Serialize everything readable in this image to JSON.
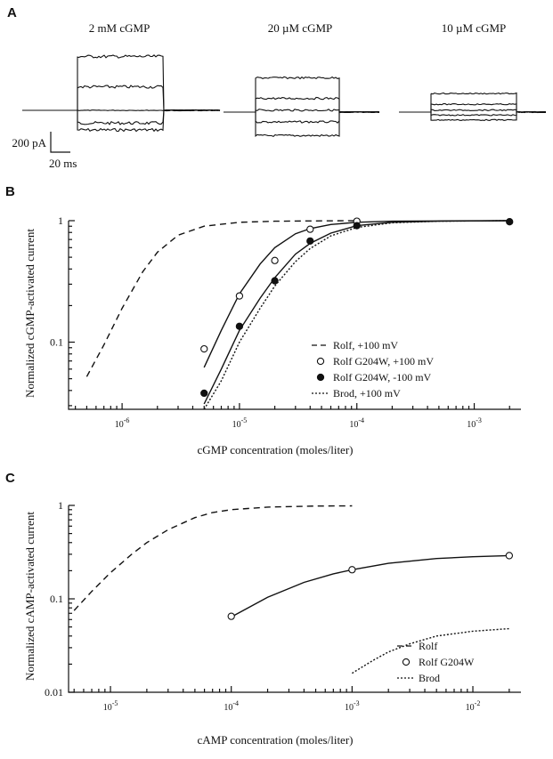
{
  "panels": {
    "a": "A",
    "b": "B",
    "c": "C"
  },
  "panel_a": {
    "conditions": [
      {
        "label": "2 mM cGMP",
        "levels": [
          -0.2,
          -0.13,
          0,
          0.24,
          0.55
        ],
        "noise": 0.03
      },
      {
        "label": "20 µM cGMP",
        "levels": [
          -0.24,
          -0.1,
          0.02,
          0.14,
          0.35
        ],
        "noise": 0.02
      },
      {
        "label": "10 µM cGMP",
        "levels": [
          -0.08,
          -0.03,
          0.02,
          0.08,
          0.19
        ],
        "noise": 0.012
      }
    ],
    "scalebar": {
      "current": "200 pA",
      "time": "20 ms"
    }
  },
  "chart_data": [
    {
      "type": "line",
      "title": "",
      "xlabel": "cGMP concentration (moles/liter)",
      "ylabel": "Normalized cGMP-activated current",
      "xscale": "log",
      "yscale": "log",
      "xlim": [
        3.5e-07,
        0.0025
      ],
      "ylim": [
        0.028,
        1
      ],
      "x_ticks": [
        {
          "v": 1e-06,
          "label": "10-6",
          "m": "10",
          "e": "-6"
        },
        {
          "v": 1e-05,
          "label": "10-5",
          "m": "10",
          "e": "-5"
        },
        {
          "v": 0.0001,
          "label": "10-4",
          "m": "10",
          "e": "-4"
        },
        {
          "v": 0.001,
          "label": "10-3",
          "m": "10",
          "e": "-3"
        }
      ],
      "y_ticks": [
        {
          "v": 0.1,
          "label": "0.1"
        },
        {
          "v": 1,
          "label": "1"
        }
      ],
      "legend_position": "right",
      "series": [
        {
          "name": "Rolf, +100 mV",
          "kind": "line",
          "dash": "dashed",
          "x": [
            5e-07,
            7e-07,
            1e-06,
            1.5e-06,
            2e-06,
            3e-06,
            5e-06,
            1e-05,
            2e-05,
            4e-05,
            0.0001
          ],
          "y": [
            0.052,
            0.095,
            0.19,
            0.38,
            0.55,
            0.76,
            0.9,
            0.97,
            0.99,
            0.995,
            1.0
          ]
        },
        {
          "name": "Rolf G204W, +100 mV",
          "kind": "markers-line",
          "marker": "open",
          "x": [
            5e-06,
            1e-05,
            2e-05,
            4e-05,
            0.0001
          ],
          "y": [
            0.088,
            0.24,
            0.47,
            0.85,
            0.99
          ],
          "fit_x": [
            5e-06,
            7e-06,
            1e-05,
            1.5e-05,
            2e-05,
            3e-05,
            4e-05,
            6e-05,
            0.0001,
            0.0002,
            0.0005,
            0.002
          ],
          "fit_y": [
            0.062,
            0.125,
            0.25,
            0.44,
            0.6,
            0.78,
            0.86,
            0.93,
            0.97,
            0.99,
            0.995,
            1.0
          ]
        },
        {
          "name": "Rolf G204W, -100 mV",
          "kind": "markers-line",
          "marker": "filled",
          "x": [
            5e-06,
            1e-05,
            2e-05,
            4e-05,
            0.0001,
            0.002
          ],
          "y": [
            0.038,
            0.135,
            0.32,
            0.68,
            0.91,
            0.98
          ],
          "fit_x": [
            5e-06,
            7e-06,
            1e-05,
            1.5e-05,
            2e-05,
            3e-05,
            4e-05,
            6e-05,
            0.0001,
            0.0002,
            0.0005,
            0.002
          ],
          "fit_y": [
            0.031,
            0.06,
            0.125,
            0.23,
            0.34,
            0.53,
            0.65,
            0.79,
            0.91,
            0.97,
            0.99,
            1.0
          ]
        },
        {
          "name": "Brod, +100 mV",
          "kind": "line",
          "dash": "dotted",
          "x": [
            5e-06,
            7e-06,
            1e-05,
            1.5e-05,
            2e-05,
            3e-05,
            4e-05,
            6e-05,
            0.0001,
            0.0002,
            0.0005,
            0.002
          ],
          "y": [
            0.025,
            0.048,
            0.1,
            0.19,
            0.29,
            0.46,
            0.59,
            0.75,
            0.88,
            0.96,
            0.99,
            1.0
          ]
        }
      ]
    },
    {
      "type": "line",
      "title": "",
      "xlabel": "cAMP concentration (moles/liter)",
      "ylabel": "Normalized cAMP-activated current",
      "xscale": "log",
      "yscale": "log",
      "xlim": [
        4.5e-06,
        0.025
      ],
      "ylim": [
        0.01,
        1
      ],
      "x_ticks": [
        {
          "v": 1e-05,
          "label": "10-5",
          "m": "10",
          "e": "-5"
        },
        {
          "v": 0.0001,
          "label": "10-4",
          "m": "10",
          "e": "-4"
        },
        {
          "v": 0.001,
          "label": "10-3",
          "m": "10",
          "e": "-3"
        },
        {
          "v": 0.01,
          "label": "10-2",
          "m": "10",
          "e": "-2"
        }
      ],
      "y_ticks": [
        {
          "v": 0.01,
          "label": "0.01"
        },
        {
          "v": 0.1,
          "label": "0.1"
        },
        {
          "v": 1,
          "label": "1"
        }
      ],
      "legend_position": "bottom-right",
      "series": [
        {
          "name": "Rolf",
          "kind": "line",
          "dash": "dashed",
          "x": [
            5e-06,
            7e-06,
            1e-05,
            1.5e-05,
            2e-05,
            3e-05,
            5e-05,
            7e-05,
            0.0001,
            0.0002,
            0.0005,
            0.001
          ],
          "y": [
            0.075,
            0.12,
            0.19,
            0.3,
            0.4,
            0.55,
            0.74,
            0.84,
            0.9,
            0.96,
            0.985,
            0.99
          ]
        },
        {
          "name": "Rolf G204W",
          "kind": "markers-line",
          "marker": "open",
          "x": [
            0.0001,
            0.001,
            0.02
          ],
          "y": [
            0.065,
            0.205,
            0.29
          ],
          "fit_x": [
            0.0001,
            0.0002,
            0.0004,
            0.0007,
            0.001,
            0.002,
            0.005,
            0.01,
            0.02
          ],
          "fit_y": [
            0.064,
            0.104,
            0.15,
            0.185,
            0.205,
            0.24,
            0.27,
            0.282,
            0.29
          ]
        },
        {
          "name": "Brod",
          "kind": "line",
          "dash": "dotted",
          "x": [
            0.001,
            0.0015,
            0.002,
            0.003,
            0.005,
            0.01,
            0.02
          ],
          "y": [
            0.016,
            0.022,
            0.027,
            0.033,
            0.04,
            0.045,
            0.048
          ]
        }
      ]
    }
  ]
}
